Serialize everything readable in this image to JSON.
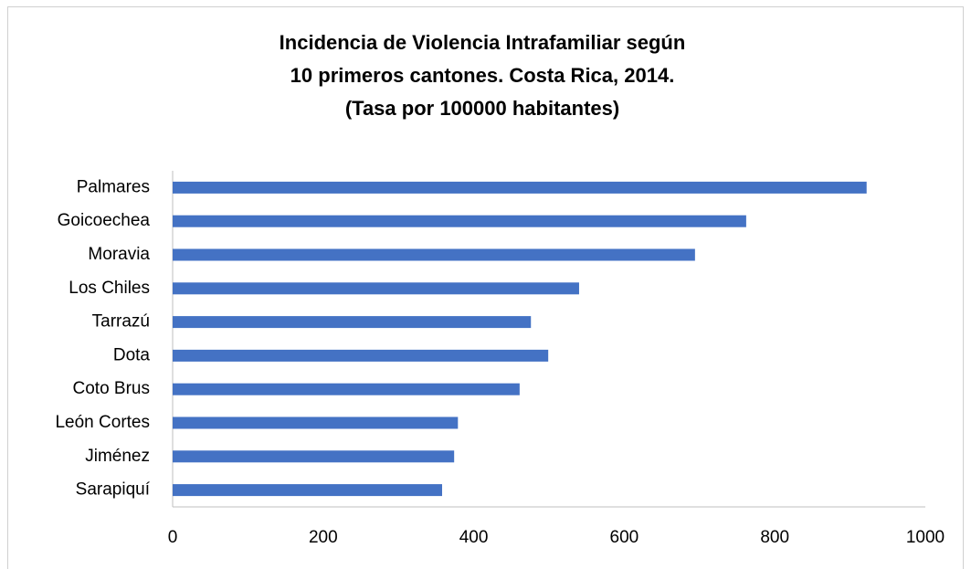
{
  "chart_data": {
    "type": "bar",
    "orientation": "horizontal",
    "title": [
      "Incidencia de Violencia Intrafamiliar según",
      "10 primeros cantones. Costa Rica, 2014.",
      "(Tasa por 100000 habitantes)"
    ],
    "categories": [
      "Palmares",
      "Goicoechea",
      "Moravia",
      "Los Chiles",
      "Tarrazú",
      "Dota",
      "Coto Brus",
      "León Cortes",
      "Jiménez",
      "Sarapiquí"
    ],
    "values": [
      922,
      762,
      694,
      540,
      476,
      499,
      461,
      379,
      374,
      358
    ],
    "color": "#4472c4",
    "xlim": [
      0,
      1000
    ],
    "xticks": [
      0,
      200,
      400,
      600,
      800,
      1000
    ],
    "grid": false
  }
}
